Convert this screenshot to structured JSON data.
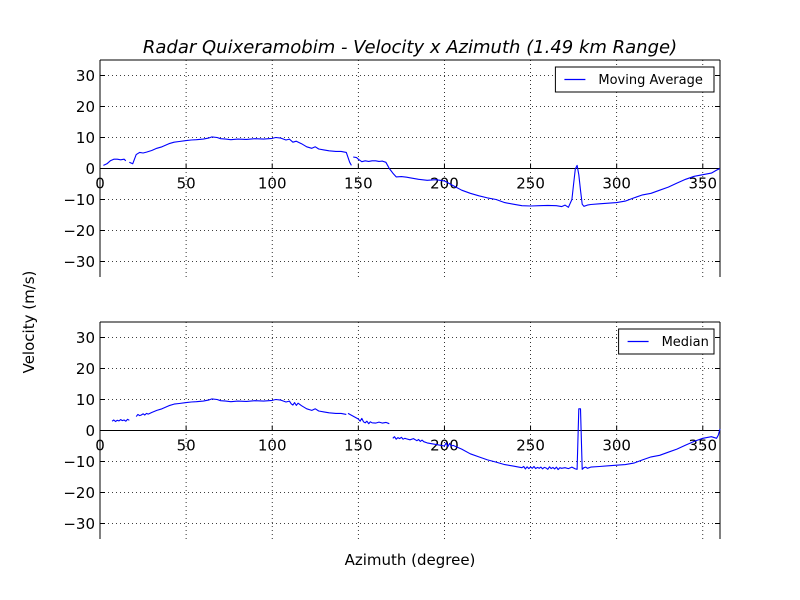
{
  "title": "Radar Quixeramobim - Velocity x Azimuth (1.49 km Range)",
  "ylabel": "Velocity (m/s)",
  "xlabel": "Azimuth (degree)",
  "chart_data": [
    {
      "type": "line",
      "series": [
        {
          "name": "Moving Average",
          "color": "#0000ff",
          "x": [
            2,
            4,
            6,
            8,
            10,
            12,
            14,
            15,
            17,
            19,
            21,
            23,
            25,
            27,
            30,
            33,
            36,
            40,
            43,
            46,
            50,
            53,
            56,
            60,
            63,
            65,
            68,
            70,
            73,
            76,
            80,
            85,
            90,
            95,
            100,
            102,
            105,
            108,
            110,
            112,
            114,
            117,
            120,
            123,
            125,
            127,
            130,
            133,
            137,
            140,
            143,
            145,
            146,
            147,
            149,
            150,
            152,
            154,
            156,
            158,
            160,
            162,
            164,
            166,
            168,
            170,
            172,
            175,
            178,
            180,
            185,
            190,
            195,
            200,
            205,
            210,
            215,
            220,
            225,
            230,
            235,
            240,
            245,
            250,
            255,
            260,
            265,
            268,
            270,
            272,
            274,
            275,
            276,
            277,
            278,
            279,
            280,
            281,
            283,
            285,
            290,
            295,
            300,
            305,
            310,
            315,
            320,
            325,
            330,
            335,
            340,
            345,
            350,
            355,
            358,
            360
          ],
          "y": [
            1,
            1.5,
            2.5,
            3,
            3,
            2.8,
            3,
            2.5,
            2,
            1.5,
            4.5,
            5.2,
            5,
            5.3,
            5.8,
            6.5,
            7,
            8,
            8.5,
            8.7,
            9,
            9.2,
            9.3,
            9.5,
            9.8,
            10.2,
            10,
            9.6,
            9.5,
            9.3,
            9.5,
            9.4,
            9.6,
            9.5,
            9.7,
            10,
            9.8,
            9.2,
            9.5,
            8.5,
            8.8,
            8,
            7,
            6.5,
            7,
            6.3,
            6,
            5.7,
            5.5,
            5.5,
            5.2,
            2,
            1,
            3.7,
            3.5,
            3,
            2.2,
            2.5,
            2.3,
            2.5,
            2.5,
            2.3,
            2.4,
            2,
            0,
            -1.5,
            -2.7,
            -2.6,
            -2.8,
            -3,
            -3.5,
            -3.8,
            -3.6,
            -4,
            -5.5,
            -7,
            -8,
            -8.8,
            -9.5,
            -10,
            -11,
            -11.5,
            -12,
            -12.1,
            -12,
            -11.9,
            -12,
            -12.3,
            -11.8,
            -12.5,
            -10,
            -5,
            -0.2,
            1,
            -2,
            -7,
            -11.5,
            -12.2,
            -11.8,
            -11.6,
            -11.4,
            -11.2,
            -11,
            -10.5,
            -9.5,
            -8.5,
            -8,
            -7,
            -6,
            -4.7,
            -3.5,
            -2.5,
            -2,
            -1.5,
            -0.5,
            0
          ],
          "segments": [
            [
              0,
              7
            ],
            [
              8,
              52
            ],
            [
              53,
              115
            ]
          ]
        }
      ],
      "xlim": [
        0,
        360
      ],
      "ylim": [
        -35,
        35
      ],
      "xticks": [
        0,
        50,
        100,
        150,
        200,
        250,
        300,
        350
      ],
      "yticks": [
        -30,
        -20,
        -10,
        0,
        10,
        20,
        30
      ],
      "grid": true,
      "legend_position": "top-right"
    },
    {
      "type": "line",
      "series": [
        {
          "name": "Median",
          "color": "#0000ff",
          "x": [
            7,
            8,
            9,
            10,
            11,
            12,
            13,
            14,
            15,
            16,
            17,
            21,
            22,
            23,
            24,
            25,
            26,
            27,
            28,
            30,
            33,
            36,
            40,
            43,
            46,
            50,
            53,
            56,
            60,
            63,
            65,
            68,
            70,
            73,
            76,
            80,
            85,
            90,
            95,
            100,
            102,
            105,
            108,
            110,
            111,
            112,
            113,
            114,
            115,
            117,
            120,
            123,
            125,
            127,
            130,
            133,
            137,
            140,
            143,
            144,
            150,
            151,
            152,
            153,
            154,
            155,
            156,
            157,
            158,
            160,
            162,
            164,
            166,
            168,
            170,
            171,
            172,
            173,
            174,
            175,
            176,
            177,
            178,
            180,
            182,
            184,
            185,
            186,
            187,
            188,
            190,
            195,
            200,
            201,
            202,
            203,
            204,
            205,
            210,
            215,
            220,
            225,
            230,
            235,
            240,
            245,
            246,
            247,
            248,
            249,
            250,
            251,
            252,
            253,
            254,
            255,
            256,
            257,
            258,
            259,
            260,
            261,
            262,
            263,
            264,
            265,
            266,
            267,
            268,
            270,
            272,
            274,
            276,
            277,
            278,
            279,
            280,
            281,
            282,
            283,
            285,
            290,
            295,
            300,
            305,
            310,
            315,
            320,
            325,
            330,
            335,
            340,
            345,
            350,
            355,
            358,
            359,
            360
          ],
          "y": [
            3,
            3.4,
            2.9,
            3.3,
            3.1,
            3.5,
            3.2,
            3.4,
            3,
            3.6,
            3.3,
            4.5,
            5.2,
            4.8,
            5,
            5.4,
            5,
            5.5,
            5.3,
            5.8,
            6.5,
            7,
            8,
            8.5,
            8.7,
            9,
            9.2,
            9.3,
            9.5,
            9.8,
            10.2,
            10,
            9.6,
            9.5,
            9.3,
            9.5,
            9.4,
            9.6,
            9.5,
            9.7,
            10,
            9.8,
            9.2,
            9.5,
            8.6,
            8.2,
            9,
            8.1,
            8.8,
            8,
            7,
            6.5,
            7,
            6.3,
            6,
            5.7,
            5.5,
            5.5,
            5.2,
            5.5,
            3.7,
            3,
            3.9,
            2.8,
            2.5,
            3,
            2.2,
            2.8,
            2.5,
            2.4,
            2.7,
            2.4,
            2.6,
            2.2,
            -2.5,
            -2,
            -2.8,
            -2.3,
            -2.6,
            -2.2,
            -2.8,
            -2.5,
            -2.7,
            -3,
            -2.6,
            -3.3,
            -2.9,
            -3.5,
            -3.1,
            -3.6,
            -4,
            -4.5,
            -5,
            -4,
            -5.2,
            -4.2,
            -5,
            -4.8,
            -6,
            -7.5,
            -8.5,
            -9.5,
            -10.2,
            -11,
            -11.5,
            -12,
            -11.6,
            -12.4,
            -11.7,
            -12.3,
            -11.8,
            -12.2,
            -11.6,
            -12.3,
            -11.9,
            -12.2,
            -11.8,
            -12.4,
            -11.9,
            -12.1,
            -12.5,
            -11.7,
            -12.3,
            -11.9,
            -12.4,
            -11.8,
            -12.6,
            -12,
            -12.2,
            -12,
            -12.3,
            -11.8,
            -12.4,
            -12.5,
            7,
            7,
            -12.5,
            -12,
            -11.8,
            -12.2,
            -11.8,
            -11.6,
            -11.4,
            -11.2,
            -11,
            -10.5,
            -9.5,
            -8.5,
            -8,
            -7,
            -6,
            -4.7,
            -3.5,
            -2.5,
            -2,
            -2.5,
            -1.5,
            0.5
          ],
          "segments": [
            [
              0,
              10
            ],
            [
              11,
              58
            ],
            [
              59,
              73
            ],
            [
              74,
              157
            ]
          ]
        }
      ],
      "xlim": [
        0,
        360
      ],
      "ylim": [
        -35,
        35
      ],
      "xticks": [
        0,
        50,
        100,
        150,
        200,
        250,
        300,
        350
      ],
      "yticks": [
        -30,
        -20,
        -10,
        0,
        10,
        20,
        30
      ],
      "grid": true,
      "legend_position": "top-right"
    }
  ]
}
